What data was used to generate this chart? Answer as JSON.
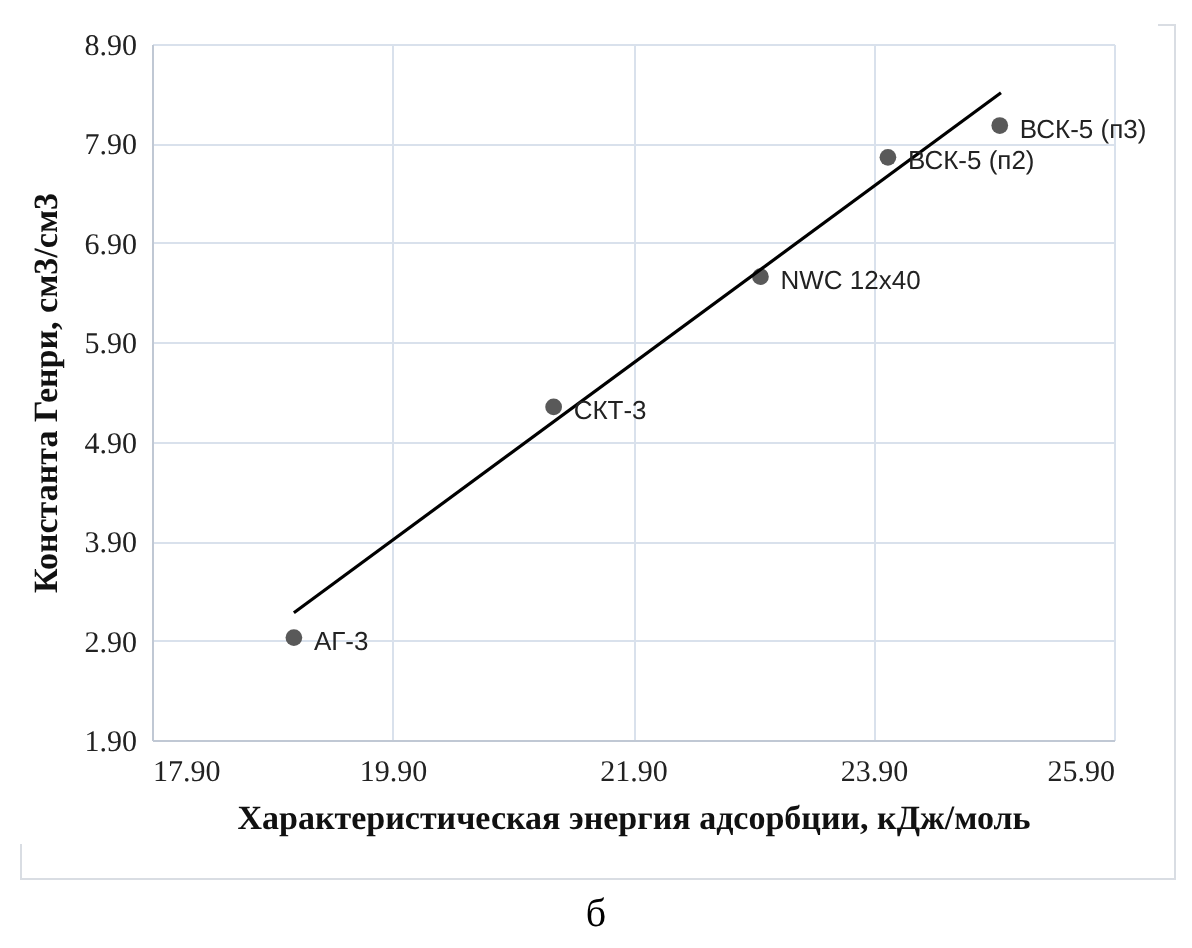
{
  "chart_data": {
    "type": "scatter",
    "xlabel": "Характеристическая  энергия адсорбции, кДж/моль",
    "ylabel": "Константа  Генри, см3/см3",
    "xlim": [
      17.9,
      25.9
    ],
    "ylim": [
      1.9,
      8.9
    ],
    "xticks": [
      {
        "value": 17.9,
        "label": "17.90"
      },
      {
        "value": 19.9,
        "label": "19.90"
      },
      {
        "value": 21.9,
        "label": "21.90"
      },
      {
        "value": 23.9,
        "label": "23.90"
      },
      {
        "value": 25.9,
        "label": "25.90"
      }
    ],
    "yticks": [
      {
        "value": 1.9,
        "label": "1.90"
      },
      {
        "value": 2.9,
        "label": "2.90"
      },
      {
        "value": 3.9,
        "label": "3.90"
      },
      {
        "value": 4.9,
        "label": "4.90"
      },
      {
        "value": 5.9,
        "label": "5.90"
      },
      {
        "value": 6.9,
        "label": "6.90"
      },
      {
        "value": 7.9,
        "label": "7.90"
      },
      {
        "value": 8.9,
        "label": "8.90"
      }
    ],
    "grid": true,
    "series": [
      {
        "marker": "circle",
        "color": "#595959",
        "x": [
          19.08,
          21.24,
          22.96,
          24.02,
          24.95
        ],
        "values": [
          2.93,
          5.25,
          6.56,
          7.76,
          8.08
        ]
      },
      {
        "type": "line",
        "color": "#000000",
        "x": [
          19.08,
          24.96
        ],
        "values": [
          3.18,
          8.41
        ]
      }
    ],
    "annotations": [
      {
        "text": "АГ-3",
        "x": 19.08,
        "y": 2.93
      },
      {
        "text": "СКТ-3",
        "x": 21.24,
        "y": 5.25
      },
      {
        "text": "NWC 12x40",
        "x": 22.96,
        "y": 6.56
      },
      {
        "text": "ВСК-5 (п2)",
        "x": 24.02,
        "y": 7.76
      },
      {
        "text": "ВСК-5 (п3)",
        "x": 24.95,
        "y": 8.08
      },
      "б"
    ]
  }
}
